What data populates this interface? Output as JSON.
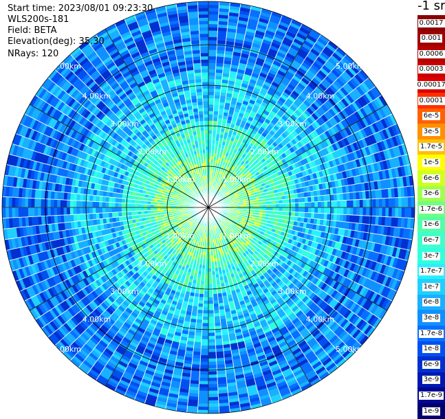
{
  "header": {
    "start_time": "Start time: 2023/08/01 09:23:30",
    "instrument": "WLS200s-181",
    "field": "Field: BETA",
    "elevation": "Elevation(deg): 35.30",
    "nrays": "NRays: 120"
  },
  "colorbar": {
    "unit_label": "-1 sr",
    "entries": [
      {
        "label": "0.0017",
        "color": "#8b0000"
      },
      {
        "label": "0.001",
        "color": "#a00000"
      },
      {
        "label": "0.0006",
        "color": "#b40000"
      },
      {
        "label": "0.0003",
        "color": "#c80000"
      },
      {
        "label": "0.00017",
        "color": "#dc0000"
      },
      {
        "label": "0.0001",
        "color": "#ff3000"
      },
      {
        "label": "6e-5",
        "color": "#ff6000"
      },
      {
        "label": "3e-5",
        "color": "#ff9000"
      },
      {
        "label": "1.7e-5",
        "color": "#ffc000"
      },
      {
        "label": "1e-5",
        "color": "#ffff00"
      },
      {
        "label": "6e-6",
        "color": "#d0ff20"
      },
      {
        "label": "3e-6",
        "color": "#a0ff50"
      },
      {
        "label": "1.7e-6",
        "color": "#70ff80"
      },
      {
        "label": "1e-6",
        "color": "#50ffa8"
      },
      {
        "label": "6e-7",
        "color": "#40ffc8"
      },
      {
        "label": "3e-7",
        "color": "#30ffe0"
      },
      {
        "label": "1.7e-7",
        "color": "#28f0ff"
      },
      {
        "label": "1e-7",
        "color": "#20d0ff"
      },
      {
        "label": "6e-8",
        "color": "#18b0ff"
      },
      {
        "label": "3e-8",
        "color": "#1090ff"
      },
      {
        "label": "1.7e-8",
        "color": "#0870ff"
      },
      {
        "label": "1e-8",
        "color": "#0050f0"
      },
      {
        "label": "6e-9",
        "color": "#0030d0"
      },
      {
        "label": "3e-9",
        "color": "#0018b0"
      },
      {
        "label": "1.7e-9",
        "color": "#000890"
      },
      {
        "label": "1e-9",
        "color": "#000070"
      }
    ]
  },
  "chart_data": {
    "type": "heatmap",
    "projection": "polar (plan position indicator)",
    "field": "BETA",
    "n_rays": 120,
    "range_rings_km": [
      1,
      2,
      3,
      4,
      5
    ],
    "range_ring_labels": [
      "1.00km",
      "2.00km",
      "3.00km",
      "4.00km",
      "5.00km"
    ],
    "spoke_angles_deg": [
      0,
      30,
      60,
      90,
      120,
      150,
      180,
      210,
      240,
      270,
      300,
      330
    ],
    "color_scale": "log",
    "value_range": [
      1e-09,
      0.0017
    ],
    "value_profile_by_range": [
      {
        "range_km_from": 0.0,
        "range_km_to": 0.5,
        "typical_value": "3e-7"
      },
      {
        "range_km_from": 0.5,
        "range_km_to": 1.4,
        "typical_value": "1e-6"
      },
      {
        "range_km_from": 1.4,
        "range_km_to": 2.2,
        "typical_value": "3e-7"
      },
      {
        "range_km_from": 2.2,
        "range_km_to": 3.5,
        "typical_value": "6e-8"
      },
      {
        "range_km_from": 3.5,
        "range_km_to": 5.4,
        "typical_value": "1.7e-8"
      }
    ]
  }
}
